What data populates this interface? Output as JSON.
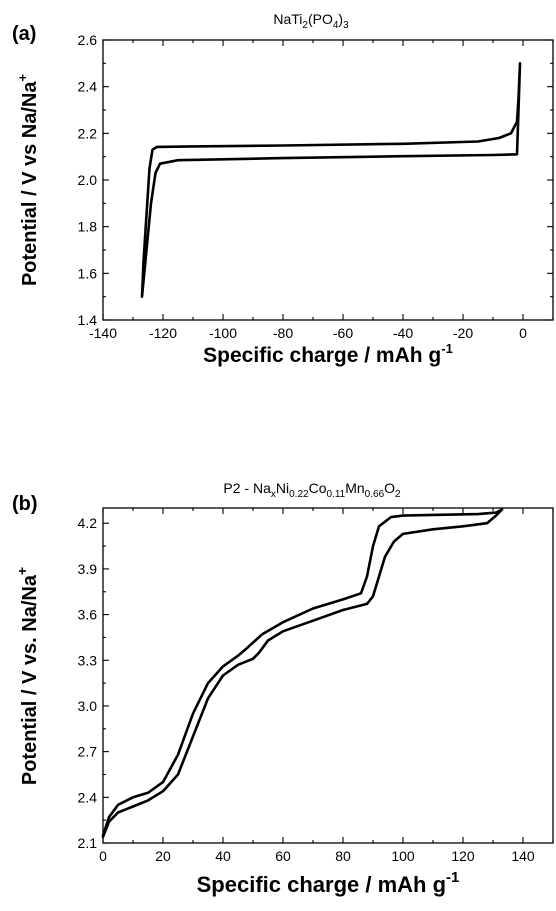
{
  "chart_data": [
    {
      "type": "line",
      "panel_label": "(a)",
      "title": {
        "pre": "NaTi",
        "s1": "2",
        "mid": "(PO",
        "s2": "4",
        "post": ")",
        "s3": "3"
      },
      "xlabel": {
        "main": "Specific charge / mAh g",
        "sup": "-1"
      },
      "ylabel": {
        "main": "Potential / V vs Na/Na",
        "sup": "+"
      },
      "xlim": [
        -140,
        10
      ],
      "ylim": [
        1.4,
        2.6
      ],
      "xticks": [
        -140,
        -120,
        -100,
        -80,
        -60,
        -40,
        -20,
        0
      ],
      "yticks": [
        1.4,
        1.6,
        1.8,
        2.0,
        2.2,
        2.4,
        2.6
      ],
      "xtick_labels": [
        "-140",
        "-120",
        "-100",
        "-80",
        "-60",
        "-40",
        "-20",
        "0"
      ],
      "ytick_labels": [
        "1.4",
        "1.6",
        "1.8",
        "2.0",
        "2.2",
        "2.4",
        "2.6"
      ],
      "grid": false,
      "series": [
        {
          "values": [
            [
              -1,
              2.5
            ],
            [
              -1.5,
              2.35
            ],
            [
              -2,
              2.25
            ],
            [
              -4,
              2.2
            ],
            [
              -8,
              2.18
            ],
            [
              -15,
              2.165
            ],
            [
              -40,
              2.155
            ],
            [
              -80,
              2.148
            ],
            [
              -110,
              2.144
            ],
            [
              -122,
              2.142
            ],
            [
              -123.5,
              2.13
            ],
            [
              -124.5,
              2.05
            ],
            [
              -125.5,
              1.85
            ],
            [
              -126.5,
              1.65
            ],
            [
              -127,
              1.5
            ],
            [
              -125.5,
              1.7
            ],
            [
              -124,
              1.9
            ],
            [
              -122.5,
              2.03
            ],
            [
              -121,
              2.07
            ],
            [
              -115,
              2.085
            ],
            [
              -80,
              2.094
            ],
            [
              -40,
              2.102
            ],
            [
              -10,
              2.107
            ],
            [
              -2,
              2.11
            ],
            [
              -1.5,
              2.3
            ],
            [
              -1,
              2.5
            ]
          ]
        }
      ]
    },
    {
      "type": "line",
      "panel_label": "(b)",
      "title": {
        "pre": "P2 - Na",
        "s1": "x",
        "mid": "Ni",
        "s2": "0.22",
        "mid2": "Co",
        "s3": "0.11",
        "mid3": "Mn",
        "s4": "0.66",
        "mid4": "O",
        "s5": "2"
      },
      "xlabel": {
        "main": "Specific charge / mAh g",
        "sup": "-1"
      },
      "ylabel": {
        "main": "Potential / V vs. Na/Na",
        "sup": "+"
      },
      "xlim": [
        0,
        150
      ],
      "ylim": [
        2.1,
        4.3
      ],
      "xticks": [
        0,
        20,
        40,
        60,
        80,
        100,
        120,
        140
      ],
      "yticks": [
        2.1,
        2.4,
        2.7,
        3.0,
        3.3,
        3.6,
        3.9,
        4.2
      ],
      "xtick_labels": [
        "0",
        "20",
        "40",
        "60",
        "80",
        "100",
        "120",
        "140"
      ],
      "ytick_labels": [
        "2.1",
        "2.4",
        "2.7",
        "3.0",
        "3.3",
        "3.6",
        "3.9",
        "4.2"
      ],
      "grid": false,
      "series": [
        {
          "values": [
            [
              0,
              2.14
            ],
            [
              2,
              2.24
            ],
            [
              5,
              2.3
            ],
            [
              10,
              2.34
            ],
            [
              15,
              2.38
            ],
            [
              20,
              2.44
            ],
            [
              25,
              2.55
            ],
            [
              30,
              2.8
            ],
            [
              35,
              3.05
            ],
            [
              40,
              3.2
            ],
            [
              45,
              3.27
            ],
            [
              50,
              3.31
            ],
            [
              52,
              3.35
            ],
            [
              55,
              3.43
            ],
            [
              60,
              3.49
            ],
            [
              70,
              3.56
            ],
            [
              80,
              3.63
            ],
            [
              88,
              3.67
            ],
            [
              90,
              3.72
            ],
            [
              92,
              3.85
            ],
            [
              94,
              3.98
            ],
            [
              97,
              4.08
            ],
            [
              100,
              4.13
            ],
            [
              110,
              4.16
            ],
            [
              120,
              4.18
            ],
            [
              128,
              4.2
            ],
            [
              131,
              4.25
            ],
            [
              133,
              4.29
            ],
            [
              131,
              4.27
            ],
            [
              125,
              4.26
            ],
            [
              110,
              4.255
            ],
            [
              100,
              4.25
            ],
            [
              96,
              4.24
            ],
            [
              92,
              4.18
            ],
            [
              90,
              4.05
            ],
            [
              88,
              3.85
            ],
            [
              86,
              3.74
            ],
            [
              80,
              3.7
            ],
            [
              70,
              3.64
            ],
            [
              60,
              3.55
            ],
            [
              53,
              3.47
            ],
            [
              48,
              3.38
            ],
            [
              45,
              3.33
            ],
            [
              40,
              3.26
            ],
            [
              35,
              3.15
            ],
            [
              30,
              2.95
            ],
            [
              25,
              2.68
            ],
            [
              20,
              2.5
            ],
            [
              15,
              2.43
            ],
            [
              10,
              2.4
            ],
            [
              5,
              2.35
            ],
            [
              2,
              2.27
            ],
            [
              0,
              2.15
            ]
          ]
        }
      ]
    }
  ]
}
